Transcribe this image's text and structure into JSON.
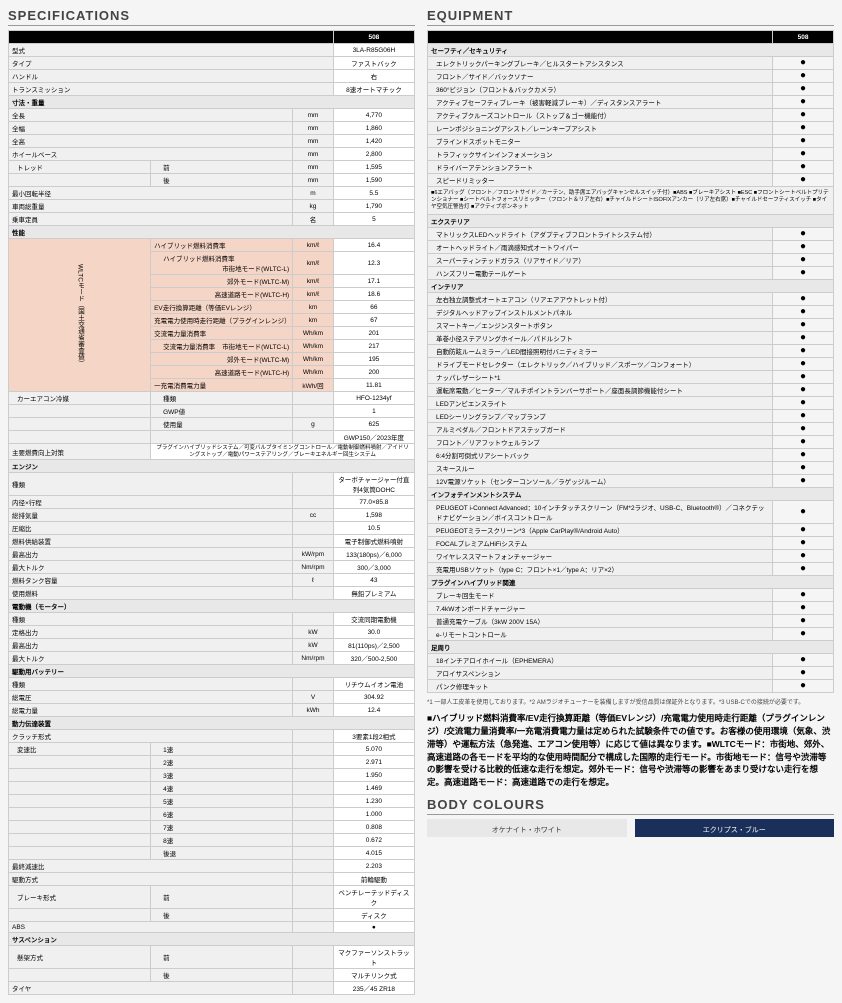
{
  "spec": {
    "title": "SPECIFICATIONS",
    "model": "508",
    "rows": [
      {
        "l": "型式",
        "v": "3LA-R85G06H"
      },
      {
        "l": "タイプ",
        "v": "ファストバック"
      },
      {
        "l": "ハンドル",
        "v": "右"
      },
      {
        "l": "トランスミッション",
        "v": "8速オートマチック"
      }
    ],
    "dim_header": "寸法・重量",
    "dims": [
      {
        "l": "全長",
        "u": "mm",
        "v": "4,770"
      },
      {
        "l": "全幅",
        "u": "mm",
        "v": "1,860"
      },
      {
        "l": "全高",
        "u": "mm",
        "v": "1,420"
      },
      {
        "l": "ホイールベース",
        "u": "mm",
        "v": "2,800"
      },
      {
        "l": "トレッド",
        "s": "前",
        "u": "mm",
        "v": "1,595"
      },
      {
        "l": "",
        "s": "後",
        "u": "mm",
        "v": "1,590"
      },
      {
        "l": "最小回転半径",
        "u": "m",
        "v": "5.5"
      },
      {
        "l": "車両総重量",
        "u": "kg",
        "v": "1,790"
      },
      {
        "l": "乗車定員",
        "u": "名",
        "v": "5"
      }
    ],
    "perf_header": "性能",
    "wltc_label": "WLTCモード（国土交通省審査値）",
    "perf": [
      {
        "l": "ハイブリッド燃料消費率",
        "u": "km/ℓ",
        "v": "16.4",
        "hl": true
      },
      {
        "l": "ハイブリッド燃料消費率",
        "s": "市街地モード(WLTC-L)",
        "u": "km/ℓ",
        "v": "12.3",
        "hl": true
      },
      {
        "l": "",
        "s": "郊外モード(WLTC-M)",
        "u": "km/ℓ",
        "v": "17.1",
        "hl": true
      },
      {
        "l": "",
        "s": "高速道路モード(WLTC-H)",
        "u": "km/ℓ",
        "v": "18.6",
        "hl": true
      },
      {
        "l": "EV走行換算距離（等価EVレンジ）",
        "u": "km",
        "v": "66",
        "hl": true
      },
      {
        "l": "充電電力使用時走行距離（プラグインレンジ）",
        "u": "km",
        "v": "67",
        "hl": true
      },
      {
        "l": "交流電力量消費率",
        "u": "Wh/km",
        "v": "201",
        "hl": true
      },
      {
        "l": "交流電力量消費率",
        "s": "市街地モード(WLTC-L)",
        "u": "Wh/km",
        "v": "217",
        "hl": true
      },
      {
        "l": "",
        "s": "郊外モード(WLTC-M)",
        "u": "Wh/km",
        "v": "195",
        "hl": true
      },
      {
        "l": "",
        "s": "高速道路モード(WLTC-H)",
        "u": "Wh/km",
        "v": "200",
        "hl": true
      },
      {
        "l": "一充電消費電力量",
        "u": "kWh/回",
        "v": "11.81",
        "hl": true
      }
    ],
    "ac": [
      {
        "l": "カーエアコン冷媒",
        "s": "種類",
        "v": "HFO-1234yf"
      },
      {
        "l": "",
        "s": "GWP値",
        "v": "1"
      },
      {
        "l": "",
        "s": "使用量",
        "u": "g",
        "v": "625"
      },
      {
        "l": "",
        "s": "",
        "v": "GWP150／2023年度"
      }
    ],
    "safety": {
      "l": "主要燃費向上対策",
      "v": "プラグインハイブリッドシステム／可変バルブタイミングコントロール／電動制御燃料噴射／アイドリングストップ／電動パワーステアリング／ブレーキエネルギー回生システム"
    },
    "engine_header": "エンジン",
    "engine": [
      {
        "l": "種類",
        "v": "ターボチャージャー付直列4気筒DOHC"
      },
      {
        "l": "内径×行程",
        "v": "77.0×85.8"
      },
      {
        "l": "総排気量",
        "u": "cc",
        "v": "1,598"
      },
      {
        "l": "圧縮比",
        "v": "10.5"
      },
      {
        "l": "燃料供給装置",
        "v": "電子制御式燃料噴射"
      },
      {
        "l": "最高出力",
        "u": "kW/rpm",
        "v": "133(180ps)／6,000"
      },
      {
        "l": "最大トルク",
        "u": "Nm/rpm",
        "v": "300／3,000"
      },
      {
        "l": "燃料タンク容量",
        "u": "ℓ",
        "v": "43"
      },
      {
        "l": "使用燃料",
        "v": "無鉛プレミアム"
      }
    ],
    "motor_header": "電動機（モーター）",
    "motor": [
      {
        "l": "種類",
        "v": "交流同期電動機"
      },
      {
        "l": "定格出力",
        "u": "kW",
        "v": "30.0"
      },
      {
        "l": "最高出力",
        "u": "kW",
        "v": "81(110ps)／2,500"
      },
      {
        "l": "最大トルク",
        "u": "Nm/rpm",
        "v": "320／500-2,500"
      }
    ],
    "battery_header": "駆動用バッテリー",
    "battery": [
      {
        "l": "種類",
        "v": "リチウムイオン電池"
      },
      {
        "l": "総電圧",
        "u": "V",
        "v": "304.92"
      },
      {
        "l": "総電力量",
        "u": "kWh",
        "v": "12.4"
      }
    ],
    "trans_header": "動力伝達装置",
    "trans": [
      {
        "l": "クラッチ形式",
        "v": "3要素1段2相式"
      },
      {
        "l": "変速比",
        "s": "1速",
        "v": "5.070"
      },
      {
        "l": "",
        "s": "2速",
        "v": "2.971"
      },
      {
        "l": "",
        "s": "3速",
        "v": "1.950"
      },
      {
        "l": "",
        "s": "4速",
        "v": "1.469"
      },
      {
        "l": "",
        "s": "5速",
        "v": "1.230"
      },
      {
        "l": "",
        "s": "6速",
        "v": "1.000"
      },
      {
        "l": "",
        "s": "7速",
        "v": "0.808"
      },
      {
        "l": "",
        "s": "8速",
        "v": "0.672"
      },
      {
        "l": "",
        "s": "後退",
        "v": "4.015"
      },
      {
        "l": "最終減速比",
        "v": "2.203"
      },
      {
        "l": "駆動方式",
        "v": "前輪駆動"
      },
      {
        "l": "ブレーキ形式",
        "s": "前",
        "v": "ベンチレーテッドディスク"
      },
      {
        "l": "",
        "s": "後",
        "v": "ディスク"
      },
      {
        "l": "ABS",
        "v": "●"
      }
    ],
    "susp_header": "サスペンション",
    "susp": [
      {
        "l": "懸架方式",
        "s": "前",
        "v": "マクファーソンストラット"
      },
      {
        "l": "",
        "s": "後",
        "v": "マルチリンク式"
      },
      {
        "l": "タイヤ",
        "v": "235／45 ZR18"
      }
    ]
  },
  "equip": {
    "title": "EQUIPMENT",
    "model": "508",
    "groups": [
      {
        "h": "セーフティ／セキュリティ",
        "items": [
          "エレクトリックパーキングブレーキ／ヒルスタートアシスタンス",
          "フロント／サイド／バックソナー",
          "360°ビジョン（フロント＆バックカメラ）",
          "アクティブセーフティブレーキ（被害軽減ブレーキ）／ディスタンスアラート",
          "アクティブクルーズコントロール（ストップ＆ゴー機能付）",
          "レーンポジショニングアシスト／レーンキープアシスト",
          "ブラインドスポットモニター",
          "トラフィックサインインフォメーション",
          "ドライバーアテンションアラート",
          "スピードリミッター"
        ]
      },
      {
        "note": "■6エアバッグ（フロント／フロントサイド／カーテン、助手席エアバッグキャンセルスイッチ付）■ABS ■ブレーキアシスト ■ESC ■フロントシートベルトプリテンショナー ■シートベルトフォースリミッター（フロント＆リア左右）■チャイルドシートISOFIXアンカー（リア左右席）■チャイルドセーフティスイッチ ■タイヤ空気圧警告灯 ■アクティブボンネット"
      },
      {
        "h": "エクステリア",
        "items": [
          "マトリックスLEDヘッドライト（アダプティブフロントライトシステム付）",
          "オートヘッドライト／雨滴感知式オートワイパー",
          "スーパーティンテッドガラス（リアサイド／リア）",
          "ハンズフリー電動テールゲート"
        ]
      },
      {
        "h": "インテリア",
        "items": [
          "左右独立調整式オートエアコン（リアエアアウトレット付）",
          "デジタルヘッドアップインストルメントパネル",
          "スマートキー／エンジンスタートボタン",
          "革巻小径ステアリングホイール／パドルシフト",
          "自動防眩ルームミラー／LED間接照明付バニティミラー",
          "ドライブモードセレクター（エレクトリック／ハイブリッド／スポーツ／コンフォート）",
          "ナッパレザーシート*1",
          "運転席電動／ヒーター／マルチポイントランバーサポート／座面長調節機能付シート",
          "LEDアンビエンスライト",
          "LEDシーリングランプ／マップランプ",
          "アルミペダル／フロントドアステップガード",
          "フロント／リアフットウェルランプ",
          "6:4分割可倒式リアシートバック",
          "スキースルー",
          "12V電源ソケット（センターコンソール／ラゲッジルーム）"
        ]
      },
      {
        "h": "インフォテインメントシステム",
        "items": [
          "PEUGEOT i-Connect Advanced：10インチタッチスクリーン（FM*2ラジオ、USB-C、Bluetooth®）／コネクテッドナビゲーション／ボイスコントロール",
          "PEUGEOTミラースクリーン*3（Apple CarPlay®/Android Auto）",
          "FOCALプレミアムHiFiシステム",
          "ワイヤレススマートフォンチャージャー",
          "充電用USBソケット（type C：フロント×1／type A：リア×2）"
        ]
      },
      {
        "h": "プラグインハイブリッド関連",
        "items": [
          "ブレーキ回生モード",
          "7.4kWオンボードチャージャー",
          "普通充電ケーブル（3kW 200V 15A）",
          "e-リモートコントロール"
        ]
      },
      {
        "h": "足周り",
        "items": [
          "18インチアロイホイール（EPHEMERA）",
          "アロイサスペンション",
          "パンク修理キット"
        ]
      }
    ],
    "footnote": "*1 一部人工皮革を使用しております。*2 AMラジオチューナーを装備しますが受信品質は保証外となります。*3 USB-Cでの接続が必要です。",
    "bodytext": "■ハイブリッド燃料消費率/EV走行換算距離（等価EVレンジ）/充電電力使用時走行距離（プラグインレンジ）/交流電力量消費率/一充電消費電力量は定められた試験条件での値です。お客様の使用環境（気象、渋滞等）や運転方法（急発進、エアコン使用等）に応じて値は異なります。■WLTCモード：市街地、郊外、高速道路の各モードを平均的な使用時間配分で構成した国際的走行モード。市街地モード：信号や渋滞等の影響を受ける比較的低速な走行を想定。郊外モード：信号や渋滞等の影響をあまり受けない走行を想定。高速道路モード：高速道路での走行を想定。"
  },
  "colours": {
    "title": "BODY COLOURS",
    "c1": "オケナイト・ホワイト",
    "c2": "エクリプス・ブルー"
  }
}
